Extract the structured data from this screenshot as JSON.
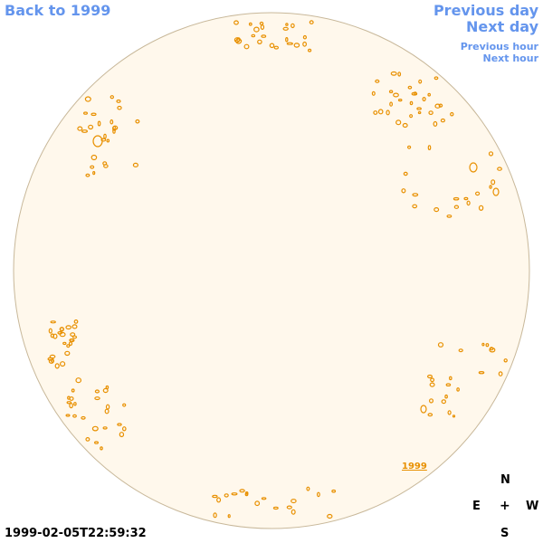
{
  "nav": {
    "back_label": "Back to 1999",
    "previous_day_label": "Previous day",
    "next_day_label": "Next day",
    "previous_hour_label": "Previous hour",
    "next_hour_label": "Next hour"
  },
  "sun": {
    "disk_fill": "#fff8ec",
    "disk_edge": "#c8b89a",
    "contour_color": "#e89000"
  },
  "compass": {
    "north": "N",
    "east": "E",
    "center": "+",
    "west": "W",
    "south": "S"
  },
  "year_label": "1999",
  "timestamp": "1999-02-05T22:59:32",
  "colors": {
    "link": "#6495ed",
    "accent": "#e89000"
  }
}
